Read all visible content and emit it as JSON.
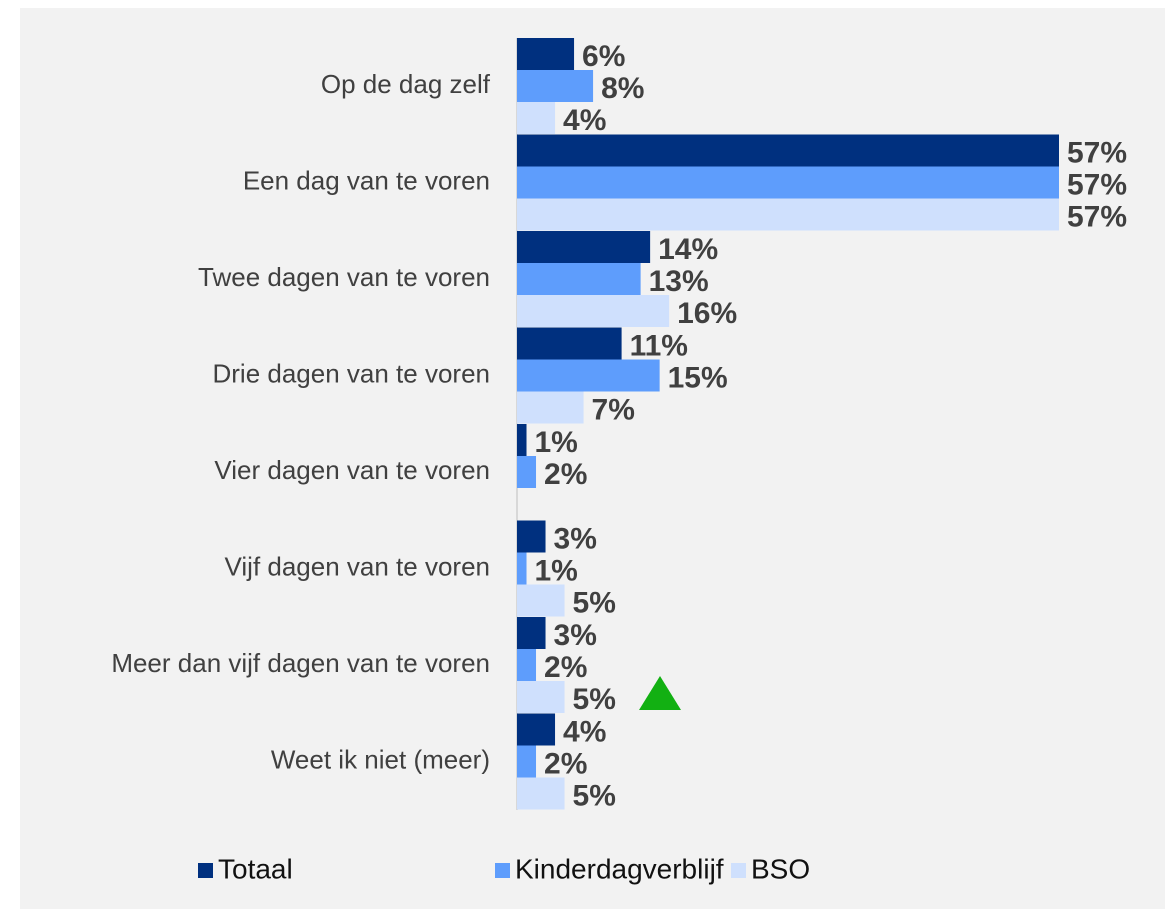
{
  "chart_data": {
    "type": "barh",
    "categories": [
      "Op de dag zelf",
      "Een dag van te voren",
      "Twee dagen van te voren",
      "Drie dagen van te voren",
      "Vier dagen van te voren",
      "Vijf dagen van te voren",
      "Meer dan vijf dagen van te voren",
      "Weet ik niet (meer)"
    ],
    "series": [
      {
        "name": "Totaal",
        "color": "#00307f",
        "values": [
          6,
          57,
          14,
          11,
          1,
          3,
          3,
          4
        ],
        "value_labels": [
          "6%",
          "57%",
          "14%",
          "11%",
          "1%",
          "3%",
          "3%",
          "4%"
        ]
      },
      {
        "name": "Kinderdagverblijf",
        "color": "#5e9dfc",
        "values": [
          8,
          57,
          13,
          15,
          2,
          1,
          2,
          2
        ],
        "value_labels": [
          "8%",
          "57%",
          "13%",
          "15%",
          "2%",
          "1%",
          "2%",
          "2%"
        ]
      },
      {
        "name": "BSO",
        "color": "#cfe0fd",
        "values": [
          4,
          57,
          16,
          7,
          null,
          5,
          5,
          5
        ],
        "value_labels": [
          "4%",
          "57%",
          "16%",
          "7%",
          null,
          "5%",
          "5%",
          "5%"
        ]
      }
    ],
    "legend": "bottom"
  }
}
